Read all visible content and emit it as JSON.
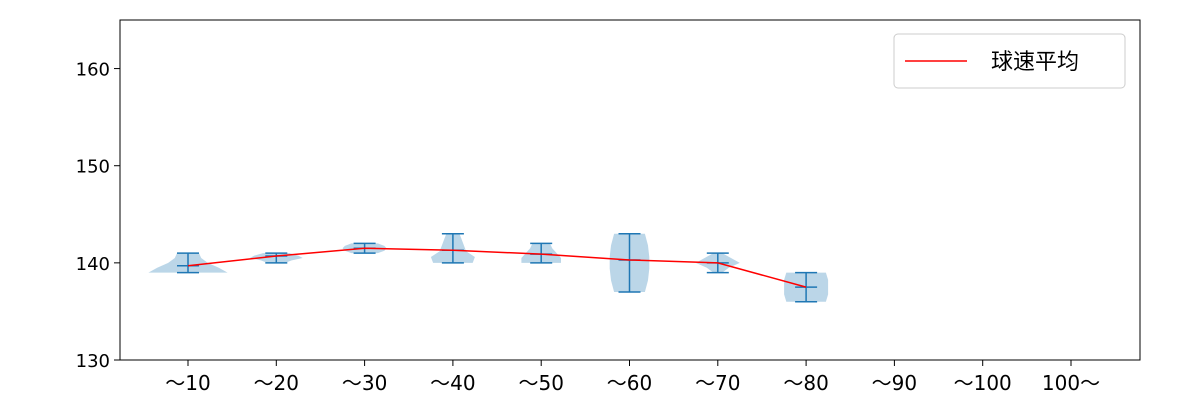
{
  "chart_data": {
    "type": "violin",
    "title": "",
    "xlabel": "",
    "ylabel": "",
    "ylim": [
      130,
      165
    ],
    "yticks": [
      130,
      140,
      150,
      160
    ],
    "categories": [
      "～10",
      "～20",
      "～30",
      "～40",
      "～50",
      "～60",
      "～70",
      "～80",
      "～90",
      "～100",
      "100～"
    ],
    "legend": {
      "label": "球速平均",
      "placement": "top-right"
    },
    "mean_line": {
      "name": "球速平均",
      "color": "#ff0000",
      "values": [
        139.7,
        140.7,
        141.5,
        141.3,
        140.9,
        140.3,
        140.0,
        137.5,
        null,
        null,
        null
      ]
    },
    "violins": [
      {
        "min": 139,
        "max": 141,
        "profile": [
          0.9,
          0.7,
          0.45,
          0.3,
          0.25
        ]
      },
      {
        "min": 140,
        "max": 141,
        "profile": [
          0.2,
          0.35,
          0.6,
          0.5,
          0.3
        ]
      },
      {
        "min": 141,
        "max": 142,
        "profile": [
          0.3,
          0.45,
          0.5,
          0.45,
          0.3
        ]
      },
      {
        "min": 140,
        "max": 143,
        "profile": [
          0.45,
          0.5,
          0.3,
          0.25,
          0.2,
          0.15
        ]
      },
      {
        "min": 140,
        "max": 142,
        "profile": [
          0.45,
          0.45,
          0.35,
          0.25,
          0.2
        ]
      },
      {
        "min": 137,
        "max": 143,
        "profile": [
          0.35,
          0.42,
          0.45,
          0.45,
          0.42,
          0.35
        ]
      },
      {
        "min": 139,
        "max": 141,
        "profile": [
          0.1,
          0.25,
          0.5,
          0.3,
          0.1
        ]
      },
      {
        "min": 136,
        "max": 139,
        "profile": [
          0.45,
          0.5,
          0.5,
          0.5,
          0.45
        ]
      },
      null,
      null,
      null
    ],
    "violin_color": "#1f77b4"
  }
}
